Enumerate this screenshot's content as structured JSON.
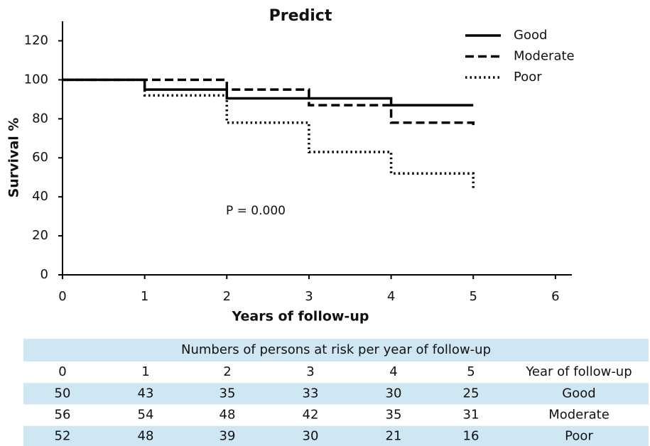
{
  "chart_data": {
    "type": "step",
    "title": "Predict",
    "x_label": "Years of follow-up",
    "y_label": "Survival %",
    "annotation": "P = 0.000",
    "x": [
      0,
      1,
      2,
      3,
      4,
      5
    ],
    "series": [
      {
        "name": "Good",
        "color": "#000000",
        "dash": "solid",
        "values": [
          100,
          95,
          90.5,
          90.5,
          87,
          87
        ]
      },
      {
        "name": "Moderate",
        "color": "#000000",
        "dash": "dashed",
        "values": [
          100,
          100,
          95,
          87,
          78,
          75
        ]
      },
      {
        "name": "Poor",
        "color": "#000000",
        "dash": "dotted",
        "values": [
          100,
          92,
          78,
          63,
          52,
          44
        ]
      }
    ],
    "xlim": [
      0,
      6.2
    ],
    "xticks": [
      0,
      1,
      2,
      3,
      4,
      5,
      6
    ],
    "ylim": [
      0,
      130
    ],
    "yticks": [
      0,
      20,
      40,
      60,
      80,
      100,
      120
    ],
    "legend": "top-right"
  },
  "table": {
    "title": "Numbers of persons at risk per year of follow-up",
    "columns": [
      0,
      1,
      2,
      3,
      4,
      5,
      "Year of follow-up"
    ],
    "rows": [
      [
        50,
        43,
        35,
        33,
        30,
        25,
        "Good"
      ],
      [
        56,
        54,
        48,
        42,
        35,
        31,
        "Moderate"
      ],
      [
        52,
        48,
        39,
        30,
        21,
        16,
        "Poor"
      ]
    ]
  }
}
